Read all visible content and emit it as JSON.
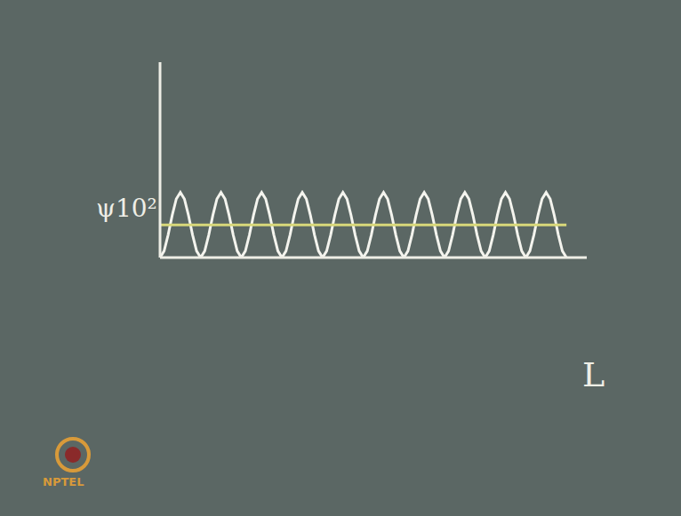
{
  "chart_data": {
    "type": "line",
    "y_label": "ψ10²",
    "x_label": "L",
    "watermark": "NPTEL",
    "tick_labels": false,
    "grid": false,
    "xlim": [
      0,
      105
    ],
    "ylim": [
      0,
      3
    ],
    "xticks": [],
    "yticks": [],
    "x": [
      0,
      1,
      2,
      3,
      4,
      5,
      6,
      7,
      8,
      9,
      10,
      11,
      12,
      13,
      14,
      15,
      16,
      17,
      18,
      19,
      20,
      21,
      22,
      23,
      24,
      25,
      26,
      27,
      28,
      29,
      30,
      31,
      32,
      33,
      34,
      35,
      36,
      37,
      38,
      39,
      40,
      41,
      42,
      43,
      44,
      45,
      46,
      47,
      48,
      49,
      50,
      51,
      52,
      53,
      54,
      55,
      56,
      57,
      58,
      59,
      60,
      61,
      62,
      63,
      64,
      65,
      66,
      67,
      68,
      69,
      70,
      71,
      72,
      73,
      74,
      75,
      76,
      77,
      78,
      79,
      80,
      81,
      82,
      83,
      84,
      85,
      86,
      87,
      88,
      89,
      90,
      91,
      92,
      93,
      94,
      95,
      96,
      97,
      98,
      99,
      100
    ],
    "series": [
      {
        "color": "#f4f4ee",
        "values": [
          0,
          0.1,
          0.35,
          0.65,
          0.9,
          1,
          0.9,
          0.65,
          0.35,
          0.1,
          0,
          0.1,
          0.35,
          0.65,
          0.9,
          1,
          0.9,
          0.65,
          0.35,
          0.1,
          0,
          0.1,
          0.35,
          0.65,
          0.9,
          1,
          0.9,
          0.65,
          0.35,
          0.1,
          0,
          0.1,
          0.35,
          0.65,
          0.9,
          1,
          0.9,
          0.65,
          0.35,
          0.1,
          0,
          0.1,
          0.35,
          0.65,
          0.9,
          1,
          0.9,
          0.65,
          0.35,
          0.1,
          0,
          0.1,
          0.35,
          0.65,
          0.9,
          1,
          0.9,
          0.65,
          0.35,
          0.1,
          0,
          0.1,
          0.35,
          0.65,
          0.9,
          1,
          0.9,
          0.65,
          0.35,
          0.1,
          0,
          0.1,
          0.35,
          0.65,
          0.9,
          1,
          0.9,
          0.65,
          0.35,
          0.1,
          0,
          0.1,
          0.35,
          0.65,
          0.9,
          1,
          0.9,
          0.65,
          0.35,
          0.1,
          0,
          0.1,
          0.35,
          0.65,
          0.9,
          1,
          0.9,
          0.65,
          0.35,
          0.1,
          0
        ]
      },
      {
        "color": "#d8d87a",
        "values": [
          0.5,
          0.5,
          0.5,
          0.5,
          0.5,
          0.5,
          0.5,
          0.5,
          0.5,
          0.5,
          0.5,
          0.5,
          0.5,
          0.5,
          0.5,
          0.5,
          0.5,
          0.5,
          0.5,
          0.5,
          0.5,
          0.5,
          0.5,
          0.5,
          0.5,
          0.5,
          0.5,
          0.5,
          0.5,
          0.5,
          0.5,
          0.5,
          0.5,
          0.5,
          0.5,
          0.5,
          0.5,
          0.5,
          0.5,
          0.5,
          0.5,
          0.5,
          0.5,
          0.5,
          0.5,
          0.5,
          0.5,
          0.5,
          0.5,
          0.5,
          0.5,
          0.5,
          0.5,
          0.5,
          0.5,
          0.5,
          0.5,
          0.5,
          0.5,
          0.5,
          0.5,
          0.5,
          0.5,
          0.5,
          0.5,
          0.5,
          0.5,
          0.5,
          0.5,
          0.5,
          0.5,
          0.5,
          0.5,
          0.5,
          0.5,
          0.5,
          0.5,
          0.5,
          0.5,
          0.5,
          0.5,
          0.5,
          0.5,
          0.5,
          0.5,
          0.5,
          0.5,
          0.5,
          0.5,
          0.5,
          0.5,
          0.5,
          0.5,
          0.5,
          0.5,
          0.5,
          0.5,
          0.5,
          0.5,
          0.5,
          0.5
        ]
      }
    ]
  }
}
